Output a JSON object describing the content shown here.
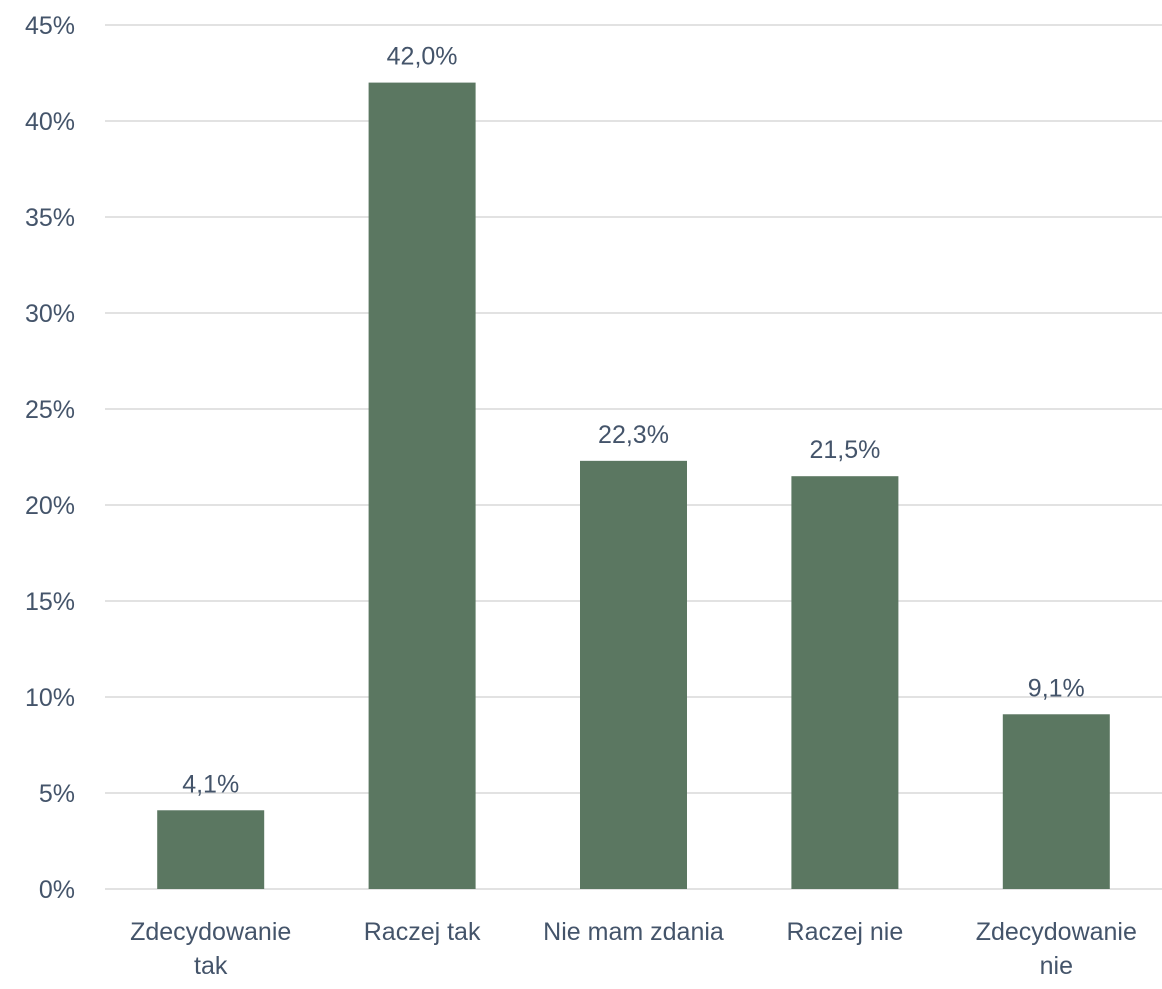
{
  "chart_data": {
    "type": "bar",
    "categories": [
      [
        "Zdecydowanie",
        "tak"
      ],
      [
        "Raczej tak"
      ],
      [
        "Nie mam zdania"
      ],
      [
        "Raczej nie"
      ],
      [
        "Zdecydowanie",
        "nie"
      ]
    ],
    "values": [
      4.1,
      42.0,
      22.3,
      21.5,
      9.1
    ],
    "data_labels": [
      "4,1%",
      "42,0%",
      "22,3%",
      "21,5%",
      "9,1%"
    ],
    "title": "",
    "xlabel": "",
    "ylabel": "",
    "ylim": [
      0,
      45
    ],
    "yticks": [
      0,
      5,
      10,
      15,
      20,
      25,
      30,
      35,
      40,
      45
    ],
    "ytick_labels": [
      "0%",
      "5%",
      "10%",
      "15%",
      "20%",
      "25%",
      "30%",
      "35%",
      "40%",
      "45%"
    ],
    "grid": true,
    "legend": "none",
    "colors": {
      "bar": "#5b7761",
      "grid": "#d9d9d9",
      "axis": "#d9d9d9",
      "text": "#44546a"
    }
  }
}
